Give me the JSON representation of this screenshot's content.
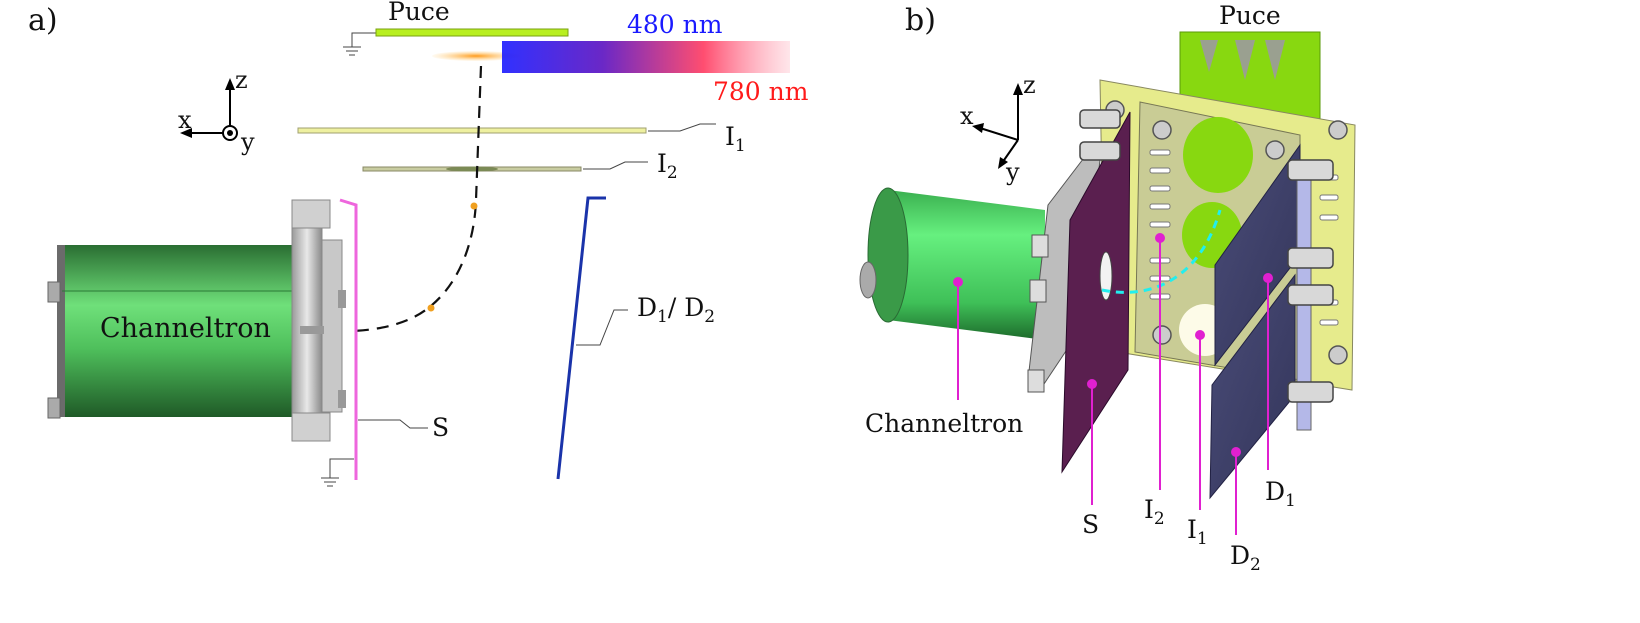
{
  "panel_a": {
    "label": "a)",
    "puce": "Puce",
    "wl_blue": "480 nm",
    "wl_red": "780 nm",
    "axes": {
      "x": "x",
      "y": "y",
      "z": "z"
    },
    "i1": {
      "main": "I",
      "sub": "1"
    },
    "i2": {
      "main": "I",
      "sub": "2"
    },
    "d": {
      "main1": "D",
      "sub1": "1",
      "main2": "/ D",
      "sub2": "2"
    },
    "s": "S",
    "channeltron": "Channeltron",
    "colors": {
      "blue_text": "#1a1aff",
      "red_text": "#ff1a1a",
      "pink": "#ee66dd",
      "green": "#55cc66",
      "deflector": "#1a33aa"
    }
  },
  "panel_b": {
    "label": "b)",
    "puce": "Puce",
    "axes": {
      "x": "x",
      "y": "y",
      "z": "z"
    },
    "channeltron": "Channeltron",
    "s": "S",
    "i2": {
      "main": "I",
      "sub": "2"
    },
    "i1": {
      "main": "I",
      "sub": "1"
    },
    "d1": {
      "main": "D",
      "sub": "1"
    },
    "d2": {
      "main": "D",
      "sub": "2"
    },
    "colors": {
      "magenta": "#e020d0",
      "plate_yellow": "#e6eb8c",
      "puce_green": "#88d810",
      "deflector_navy": "#3d3f66",
      "skimmer": "#5a1f4f"
    }
  }
}
